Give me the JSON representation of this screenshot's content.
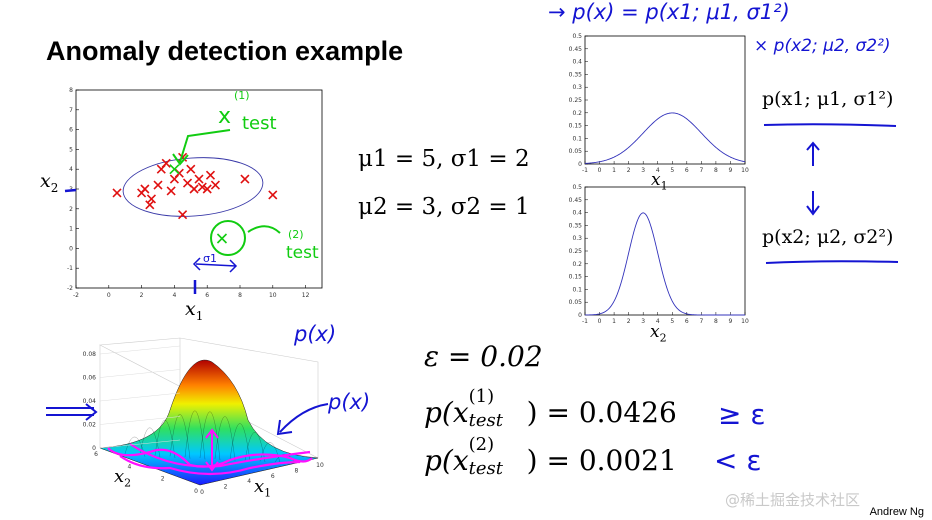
{
  "slide": {
    "title": "Anomaly detection example",
    "author": "Andrew Ng",
    "watermark": "@稀土掘金技术社区"
  },
  "scatter": {
    "xlabel_base": "x",
    "xlabel_sub": "1",
    "ylabel_base": "x",
    "ylabel_sub": "2",
    "x_ticks": [
      "-2",
      "0",
      "2",
      "4",
      "6",
      "8",
      "10",
      "12"
    ],
    "y_ticks": [
      "8",
      "7",
      "6",
      "5",
      "4",
      "3",
      "2",
      "1",
      "0",
      "-1",
      "-2"
    ],
    "annotations": {
      "test1": "x",
      "test1_word": "test",
      "test1_sup": "(1)",
      "test2_word": "test",
      "test2_sup": "(2)",
      "sigma1": "σ1"
    }
  },
  "params": {
    "line1": "μ1 = 5, σ1 = 2",
    "line2": "μ2 = 3, σ2 = 1"
  },
  "density_plots": {
    "y_ticks": [
      "0.5",
      "0.45",
      "0.4",
      "0.35",
      "0.3",
      "0.25",
      "0.2",
      "0.15",
      "0.1",
      "0.05",
      "0"
    ],
    "x_ticks": [
      "-1",
      "0",
      "1",
      "2",
      "3",
      "4",
      "5",
      "6",
      "7",
      "8",
      "9",
      "10"
    ],
    "top_xlabel_base": "x",
    "top_xlabel_sub": "1",
    "bottom_xlabel_base": "x",
    "bottom_xlabel_sub": "2",
    "top_mean": 5,
    "top_sd": 2,
    "bottom_mean": 3,
    "bottom_sd": 1
  },
  "right_formulas": {
    "top": "p(x1; μ1, σ1²)",
    "bottom": "p(x2; μ2, σ2²)"
  },
  "handwriting": {
    "top_line": "→ p(x) = p(x1; μ1, σ1²)",
    "top_line2": "× p(x2; μ2, σ2²)",
    "px_label_top": "p(x)",
    "px_label_right": "p(x)",
    "gte": "≥ ε",
    "lt": "< ε"
  },
  "surface": {
    "z_ticks": [
      "0.08",
      "0.06",
      "0.04",
      "0.02",
      "0"
    ],
    "x_ticks": [
      "0",
      "2",
      "4",
      "6",
      "8",
      "10"
    ],
    "y_ticks": [
      "0",
      "2",
      "4",
      "6"
    ],
    "xlabel_base": "x",
    "xlabel_sub": "1",
    "ylabel_base": "x",
    "ylabel_sub": "2"
  },
  "results": {
    "epsilon": "ε = 0.02",
    "p1_value": "= 0.0426",
    "p2_value": "= 0.0021",
    "p_prefix": "p(x",
    "test_word": "test",
    "sup1": "(1)",
    "sup2": "(2)"
  },
  "chart_data": [
    {
      "type": "scatter",
      "title": "",
      "xlabel": "x1",
      "ylabel": "x2",
      "xlim": [
        -2,
        13
      ],
      "ylim": [
        -2,
        8
      ],
      "series": [
        {
          "name": "",
          "x": [
            0.5,
            2.0,
            2.2,
            2.5,
            2.6,
            3.0,
            3.5,
            3.8,
            4.0,
            4.3,
            4.5,
            4.8,
            5.0,
            5.2,
            5.5,
            5.7,
            6.0,
            6.2,
            6.5,
            8.3,
            10.0,
            3.2,
            4.5
          ],
          "y": [
            2.8,
            2.8,
            3.0,
            2.2,
            2.5,
            3.2,
            4.3,
            2.9,
            3.5,
            3.8,
            1.7,
            3.3,
            4.0,
            3.0,
            3.5,
            3.1,
            3.0,
            3.7,
            3.2,
            3.5,
            2.7,
            4.0,
            4.6
          ]
        },
        {
          "name": "",
          "x": [
            4.0,
            6.9
          ],
          "y": [
            4.0,
            0.5
          ]
        }
      ]
    },
    {
      "type": "line",
      "title": "",
      "xlabel": "x1",
      "ylabel": "",
      "xlim": [
        -1,
        10
      ],
      "ylim": [
        0,
        0.5
      ],
      "mean": 5,
      "sd": 2
    },
    {
      "type": "line",
      "title": "",
      "xlabel": "x2",
      "ylabel": "",
      "xlim": [
        -1,
        10
      ],
      "ylim": [
        0,
        0.5
      ],
      "mean": 3,
      "sd": 1
    }
  ]
}
